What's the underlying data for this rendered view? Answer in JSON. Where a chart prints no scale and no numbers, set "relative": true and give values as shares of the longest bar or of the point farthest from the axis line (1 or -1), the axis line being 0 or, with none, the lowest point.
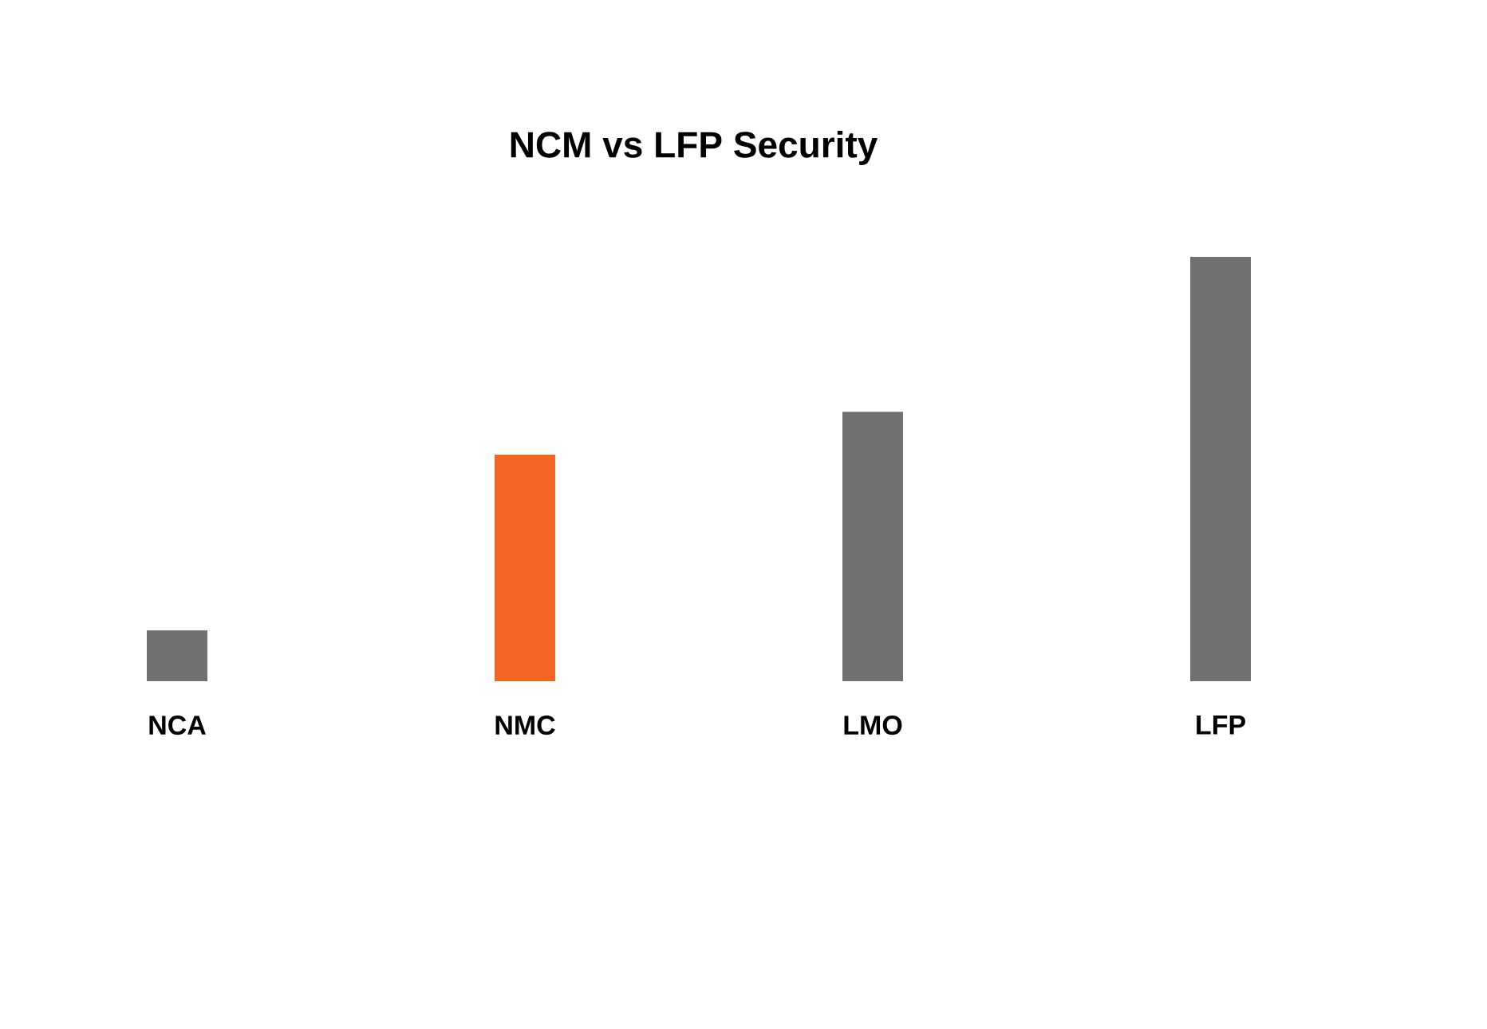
{
  "chart_data": {
    "type": "bar",
    "title": "NCM vs LFP Security",
    "relative": true,
    "categories": [
      "NCA",
      "NMC",
      "LMO",
      "LFP"
    ],
    "values": [
      0.12,
      0.534,
      0.635,
      1
    ],
    "colors": [
      "#707070",
      "#f26522",
      "#707070",
      "#707070"
    ]
  }
}
